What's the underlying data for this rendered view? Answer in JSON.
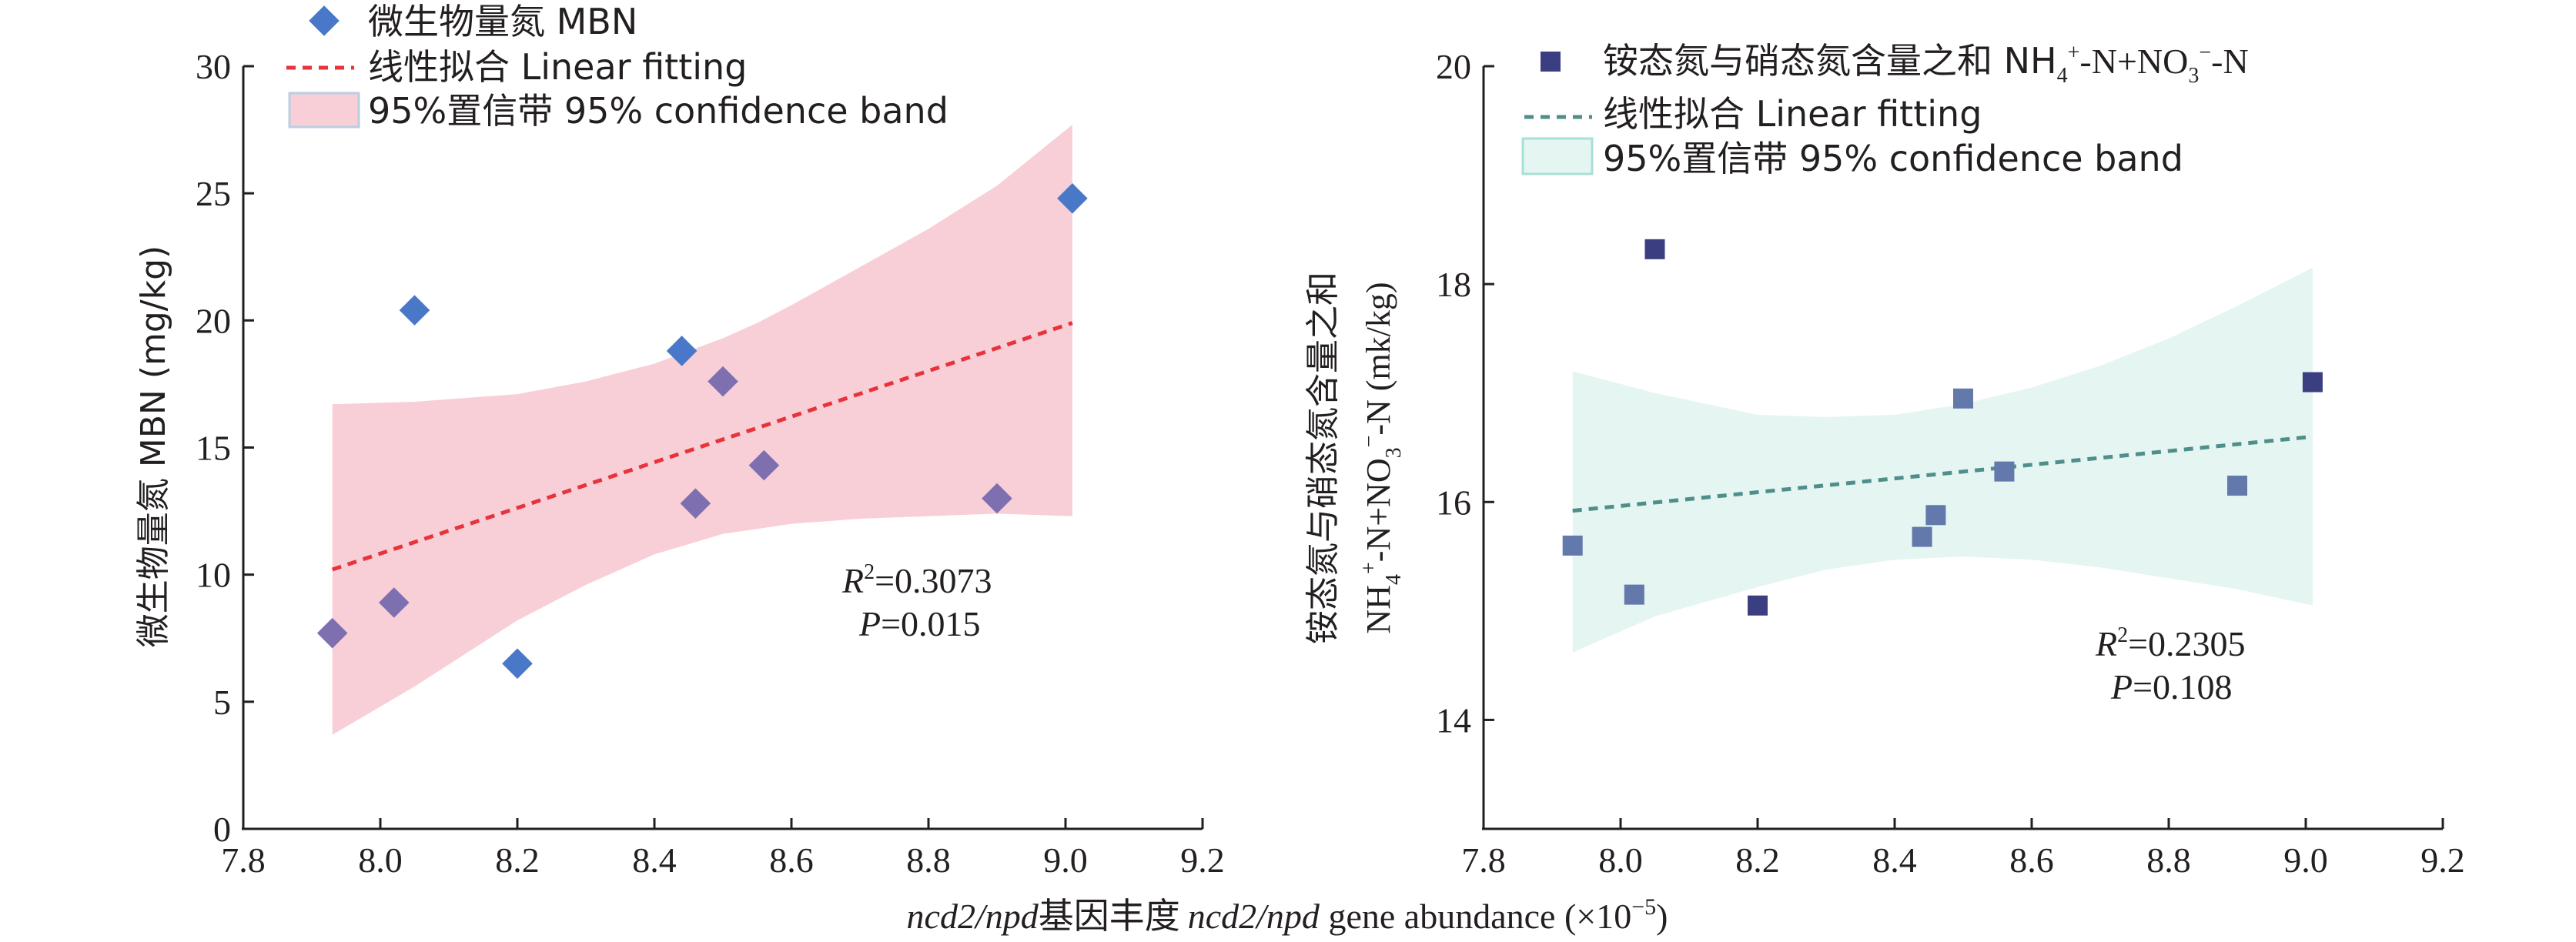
{
  "x_axis_label": {
    "part1": "ncd2/npd",
    "part2": "基因丰度",
    "part3": "ncd2/npd",
    "part4": " gene abundance (×10",
    "exp": "−5",
    "part5": ")"
  },
  "chart_data": [
    {
      "type": "scatter",
      "panel": "left",
      "legend_position": "top-left",
      "grid": false,
      "xlim": [
        7.8,
        9.2
      ],
      "ylim": [
        0,
        30
      ],
      "x_ticks": [
        "7.8",
        "8.0",
        "8.2",
        "8.4",
        "8.6",
        "8.8",
        "9.0",
        "9.2"
      ],
      "y_ticks": [
        "0",
        "5",
        "10",
        "15",
        "20",
        "25",
        "30"
      ],
      "ylabel": "微生物量氮 MBN (mg/kg)",
      "legend": {
        "points": "微生物量氮 MBN",
        "fit": "线性拟合 Linear fitting",
        "band": "95%置信带 95% confidence band"
      },
      "colors": {
        "marker": "#4a78c9",
        "marker_alt": "#7e70b0",
        "fit": "#e8323c",
        "band": "#f8cfd7"
      },
      "marker_shape": "diamond",
      "points": [
        {
          "x": 7.93,
          "y": 7.7,
          "tone": "alt"
        },
        {
          "x": 8.02,
          "y": 8.9,
          "tone": "alt"
        },
        {
          "x": 8.05,
          "y": 20.4,
          "tone": "main"
        },
        {
          "x": 8.2,
          "y": 6.5,
          "tone": "main"
        },
        {
          "x": 8.44,
          "y": 18.8,
          "tone": "main"
        },
        {
          "x": 8.46,
          "y": 12.8,
          "tone": "alt"
        },
        {
          "x": 8.5,
          "y": 17.6,
          "tone": "alt"
        },
        {
          "x": 8.56,
          "y": 14.3,
          "tone": "alt"
        },
        {
          "x": 8.9,
          "y": 13.0,
          "tone": "alt"
        },
        {
          "x": 9.01,
          "y": 24.8,
          "tone": "main"
        }
      ],
      "fit_line": {
        "x": [
          7.93,
          9.01
        ],
        "y": [
          10.2,
          19.9
        ]
      },
      "band": {
        "x": [
          7.93,
          8.05,
          8.2,
          8.3,
          8.4,
          8.5,
          8.55,
          8.6,
          8.7,
          8.8,
          8.9,
          9.01
        ],
        "upper": [
          16.7,
          16.8,
          17.1,
          17.6,
          18.3,
          19.3,
          19.9,
          20.6,
          22.1,
          23.6,
          25.3,
          27.7
        ],
        "lower": [
          3.7,
          5.6,
          8.2,
          9.6,
          10.8,
          11.6,
          11.8,
          12.0,
          12.2,
          12.3,
          12.4,
          12.3
        ]
      },
      "r2_label": "R",
      "r2_value": "=0.3073",
      "p_label": "P",
      "p_value": "=0.015"
    },
    {
      "type": "scatter",
      "panel": "right",
      "legend_position": "top-left",
      "grid": false,
      "xlim": [
        7.8,
        9.2
      ],
      "ylim": [
        13,
        20
      ],
      "x_ticks": [
        "7.8",
        "8.0",
        "8.2",
        "8.4",
        "8.6",
        "8.8",
        "9.0",
        "9.2"
      ],
      "y_ticks": [
        "14",
        "16",
        "18",
        "20"
      ],
      "ylabel_line1": "铵态氮与硝态氮含量之和",
      "ylabel_line2": {
        "a": "NH",
        "sub1": "4",
        "sup1": "+",
        "b": "-N+NO",
        "sub2": "3",
        "sup2": "−",
        "c": "-N (mk/kg)"
      },
      "legend": {
        "points": {
          "a": "铵态氮与硝态氮含量之和 NH",
          "sub1": "4",
          "sup1": "+",
          "b": "-N+NO",
          "sub2": "3",
          "sup2": "−",
          "c": "-N"
        },
        "fit": "线性拟合 Linear fitting",
        "band": "95%置信带 95% confidence band"
      },
      "colors": {
        "marker": "#3b3f82",
        "marker_alt": "#6378ab",
        "fit": "#4e8f8a",
        "band": "#e4f5f2"
      },
      "marker_shape": "square",
      "points": [
        {
          "x": 7.93,
          "y": 15.6,
          "tone": "alt"
        },
        {
          "x": 8.02,
          "y": 15.15,
          "tone": "alt"
        },
        {
          "x": 8.05,
          "y": 18.32,
          "tone": "main"
        },
        {
          "x": 8.2,
          "y": 15.05,
          "tone": "main"
        },
        {
          "x": 8.44,
          "y": 15.68,
          "tone": "alt"
        },
        {
          "x": 8.46,
          "y": 15.88,
          "tone": "alt"
        },
        {
          "x": 8.5,
          "y": 16.95,
          "tone": "alt"
        },
        {
          "x": 8.56,
          "y": 16.28,
          "tone": "alt"
        },
        {
          "x": 8.9,
          "y": 16.15,
          "tone": "alt"
        },
        {
          "x": 9.01,
          "y": 17.1,
          "tone": "main"
        }
      ],
      "fit_line": {
        "x": [
          7.93,
          9.01
        ],
        "y": [
          15.92,
          16.6
        ]
      },
      "band": {
        "x": [
          7.93,
          8.05,
          8.2,
          8.3,
          8.4,
          8.5,
          8.6,
          8.7,
          8.8,
          8.9,
          9.01
        ],
        "upper": [
          17.2,
          17.0,
          16.8,
          16.78,
          16.8,
          16.9,
          17.05,
          17.25,
          17.5,
          17.8,
          18.15
        ],
        "lower": [
          14.62,
          14.95,
          15.22,
          15.38,
          15.47,
          15.5,
          15.47,
          15.4,
          15.3,
          15.2,
          15.05
        ]
      },
      "r2_label": "R",
      "r2_value": "=0.2305",
      "p_label": "P",
      "p_value": "=0.108"
    }
  ]
}
